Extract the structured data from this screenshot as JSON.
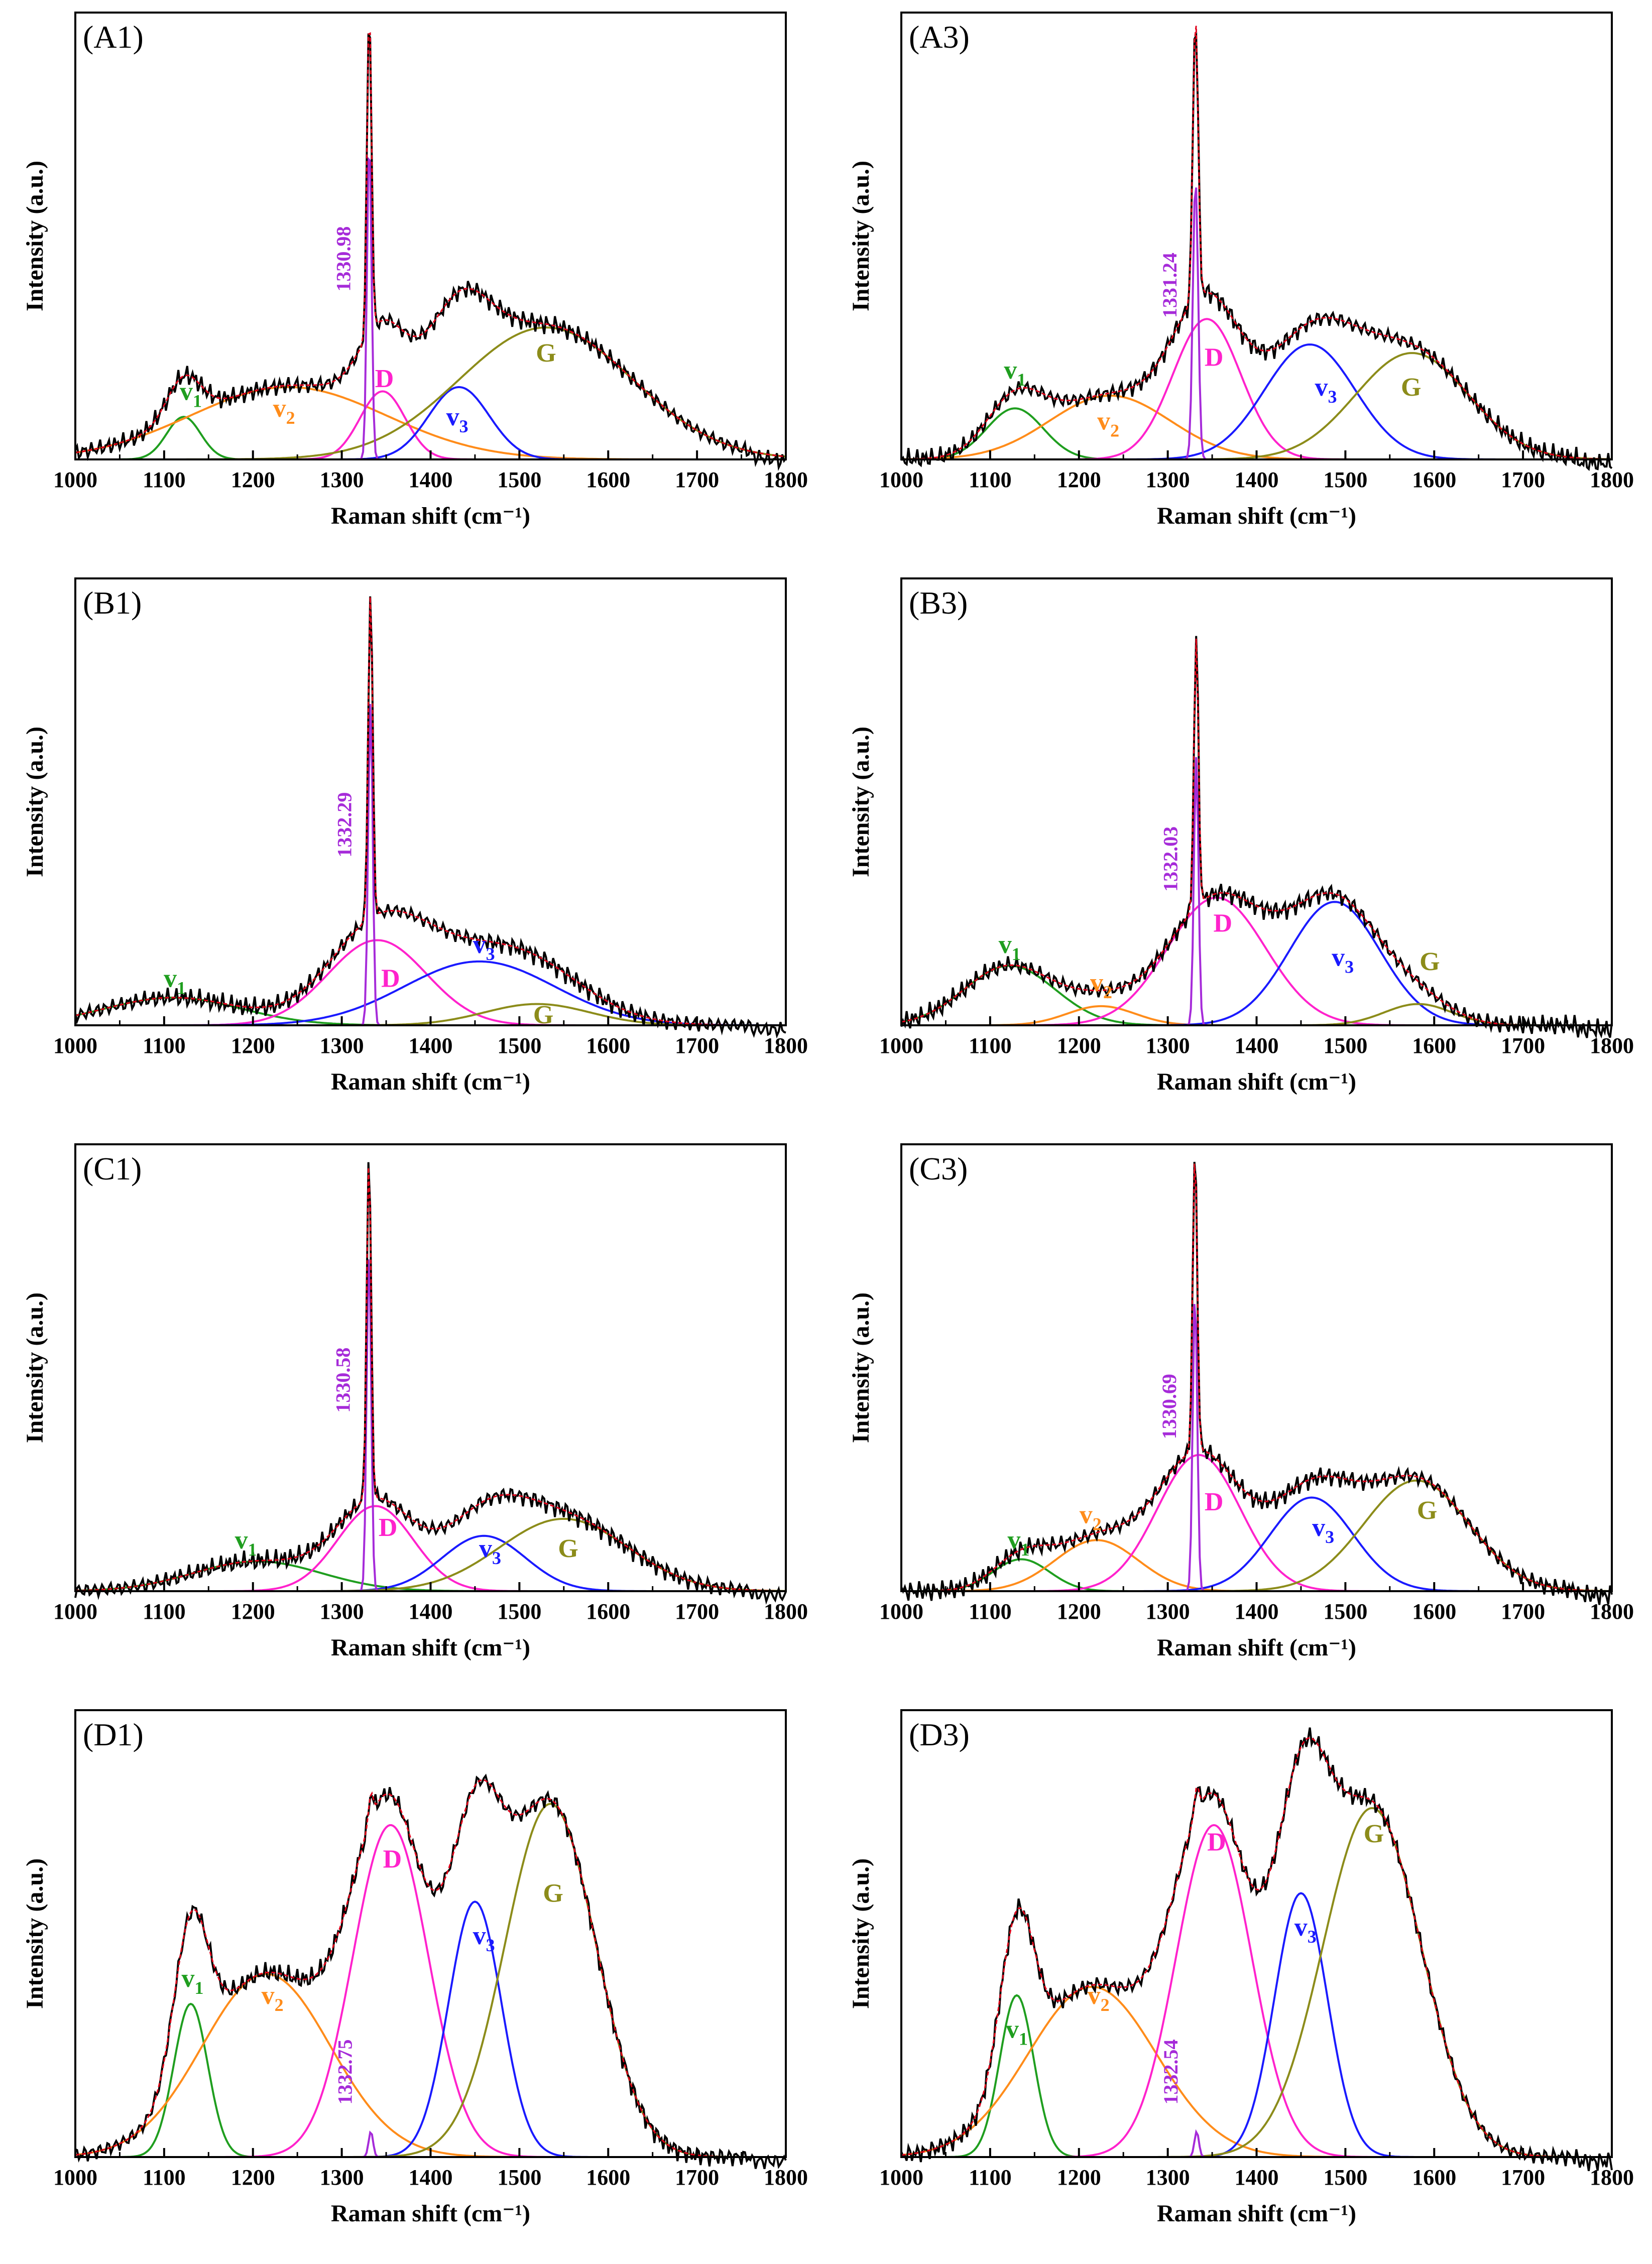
{
  "chart_data": [
    {
      "type": "line",
      "panel": "(A1)",
      "xlabel": "Raman shift (cm⁻¹)",
      "ylabel": "Intensity (a.u.)",
      "xlim": [
        1000,
        1800
      ],
      "ylim": [
        0,
        1.05
      ],
      "xticks": [
        1000,
        1100,
        1200,
        1300,
        1400,
        1500,
        1600,
        1700,
        1800
      ],
      "diamond_label": "1330.98",
      "components": [
        {
          "name": "v1",
          "sub": "1",
          "color": "#1f9e1f",
          "center": 1122,
          "fwhm": 45,
          "height": 0.1
        },
        {
          "name": "v2",
          "sub": "2",
          "color": "#ff8c1a",
          "center": 1240,
          "fwhm": 260,
          "height": 0.17
        },
        {
          "name": "D",
          "sub": "",
          "color": "#ff22cc",
          "center": 1346,
          "fwhm": 60,
          "height": 0.16
        },
        {
          "name": "v3",
          "sub": "3",
          "color": "#1a1aff",
          "center": 1432,
          "fwhm": 80,
          "height": 0.17
        },
        {
          "name": "G",
          "sub": "",
          "color": "#8c8c1a",
          "center": 1530,
          "fwhm": 230,
          "height": 0.31
        },
        {
          "name": "diamond",
          "sub": "",
          "color": "#a62bd9",
          "center": 1330.98,
          "fwhm": 6,
          "height": 0.76
        }
      ],
      "peak_labels": [
        {
          "text": "v",
          "sub": "1",
          "color": "#1f9e1f",
          "x": 1130,
          "y": 0.14
        },
        {
          "text": "v",
          "sub": "2",
          "color": "#ff8c1a",
          "x": 1235,
          "y": 0.1
        },
        {
          "text": "D",
          "sub": "",
          "color": "#ff22cc",
          "x": 1348,
          "y": 0.17
        },
        {
          "text": "v",
          "sub": "3",
          "color": "#1a1aff",
          "x": 1430,
          "y": 0.08
        },
        {
          "text": "G",
          "sub": "",
          "color": "#8c8c1a",
          "x": 1530,
          "y": 0.23
        }
      ]
    },
    {
      "type": "line",
      "panel": "(A3)",
      "xlabel": "Raman shift (cm⁻¹)",
      "ylabel": "Intensity (a.u.)",
      "xlim": [
        1000,
        1800
      ],
      "ylim": [
        0,
        1.05
      ],
      "xticks": [
        1000,
        1100,
        1200,
        1300,
        1400,
        1500,
        1600,
        1700,
        1800
      ],
      "diamond_label": "1331.24",
      "components": [
        {
          "name": "v1",
          "sub": "1",
          "color": "#1f9e1f",
          "center": 1128,
          "fwhm": 75,
          "height": 0.12
        },
        {
          "name": "v2",
          "sub": "2",
          "color": "#ff8c1a",
          "center": 1235,
          "fwhm": 160,
          "height": 0.15
        },
        {
          "name": "D",
          "sub": "",
          "color": "#ff22cc",
          "center": 1344,
          "fwhm": 90,
          "height": 0.33
        },
        {
          "name": "v3",
          "sub": "3",
          "color": "#1a1aff",
          "center": 1460,
          "fwhm": 120,
          "height": 0.27
        },
        {
          "name": "G",
          "sub": "",
          "color": "#8c8c1a",
          "center": 1575,
          "fwhm": 150,
          "height": 0.25
        },
        {
          "name": "diamond",
          "sub": "",
          "color": "#a62bd9",
          "center": 1331.24,
          "fwhm": 7,
          "height": 0.66
        }
      ],
      "peak_labels": [
        {
          "text": "v",
          "sub": "1",
          "color": "#1f9e1f",
          "x": 1128,
          "y": 0.19
        },
        {
          "text": "v",
          "sub": "2",
          "color": "#ff8c1a",
          "x": 1233,
          "y": 0.07
        },
        {
          "text": "D",
          "sub": "",
          "color": "#ff22cc",
          "x": 1352,
          "y": 0.22
        },
        {
          "text": "v",
          "sub": "3",
          "color": "#1a1aff",
          "x": 1478,
          "y": 0.15
        },
        {
          "text": "G",
          "sub": "",
          "color": "#8c8c1a",
          "x": 1574,
          "y": 0.15
        }
      ]
    },
    {
      "type": "line",
      "panel": "(B1)",
      "xlabel": "Raman shift (cm⁻¹)",
      "ylabel": "Intensity (a.u.)",
      "xlim": [
        1000,
        1800
      ],
      "ylim": [
        0,
        1.05
      ],
      "xticks": [
        1000,
        1100,
        1200,
        1300,
        1400,
        1500,
        1600,
        1700,
        1800
      ],
      "diamond_label": "1332.29",
      "components": [
        {
          "name": "v1",
          "sub": "1",
          "color": "#1f9e1f",
          "center": 1110,
          "fwhm": 180,
          "height": 0.065
        },
        {
          "name": "D",
          "sub": "",
          "color": "#ff22cc",
          "center": 1340,
          "fwhm": 130,
          "height": 0.2
        },
        {
          "name": "v3",
          "sub": "3",
          "color": "#1a1aff",
          "center": 1455,
          "fwhm": 200,
          "height": 0.15
        },
        {
          "name": "G",
          "sub": "",
          "color": "#8c8c1a",
          "center": 1520,
          "fwhm": 140,
          "height": 0.05
        },
        {
          "name": "diamond",
          "sub": "",
          "color": "#a62bd9",
          "center": 1332.29,
          "fwhm": 6,
          "height": 0.76
        }
      ],
      "peak_labels": [
        {
          "text": "v",
          "sub": "1",
          "color": "#1f9e1f",
          "x": 1112,
          "y": 0.09
        },
        {
          "text": "D",
          "sub": "",
          "color": "#ff22cc",
          "x": 1355,
          "y": 0.09
        },
        {
          "text": "v",
          "sub": "3",
          "color": "#1a1aff",
          "x": 1460,
          "y": 0.17
        },
        {
          "text": "G",
          "sub": "",
          "color": "#8c8c1a",
          "x": 1527,
          "y": 0.005
        }
      ]
    },
    {
      "type": "line",
      "panel": "(B3)",
      "xlabel": "Raman shift (cm⁻¹)",
      "ylabel": "Intensity (a.u.)",
      "xlim": [
        1000,
        1800
      ],
      "ylim": [
        0,
        1.05
      ],
      "xticks": [
        1000,
        1100,
        1200,
        1300,
        1400,
        1500,
        1600,
        1700,
        1800
      ],
      "diamond_label": "1332.03",
      "components": [
        {
          "name": "v1",
          "sub": "1",
          "color": "#1f9e1f",
          "center": 1122,
          "fwhm": 120,
          "height": 0.14
        },
        {
          "name": "v2",
          "sub": "2",
          "color": "#ff8c1a",
          "center": 1225,
          "fwhm": 90,
          "height": 0.045
        },
        {
          "name": "D",
          "sub": "",
          "color": "#ff22cc",
          "center": 1355,
          "fwhm": 130,
          "height": 0.3
        },
        {
          "name": "v3",
          "sub": "3",
          "color": "#1a1aff",
          "center": 1488,
          "fwhm": 120,
          "height": 0.29
        },
        {
          "name": "G",
          "sub": "",
          "color": "#8c8c1a",
          "center": 1582,
          "fwhm": 90,
          "height": 0.05
        },
        {
          "name": "diamond",
          "sub": "",
          "color": "#a62bd9",
          "center": 1332.03,
          "fwhm": 6,
          "height": 0.63
        }
      ],
      "peak_labels": [
        {
          "text": "v",
          "sub": "1",
          "color": "#1f9e1f",
          "x": 1122,
          "y": 0.17
        },
        {
          "text": "v",
          "sub": "2",
          "color": "#ff8c1a",
          "x": 1225,
          "y": 0.08
        },
        {
          "text": "D",
          "sub": "",
          "color": "#ff22cc",
          "x": 1362,
          "y": 0.22
        },
        {
          "text": "v",
          "sub": "3",
          "color": "#1a1aff",
          "x": 1497,
          "y": 0.14
        },
        {
          "text": "G",
          "sub": "",
          "color": "#8c8c1a",
          "x": 1595,
          "y": 0.13
        }
      ]
    },
    {
      "type": "line",
      "panel": "(C1)",
      "xlabel": "Raman shift (cm⁻¹)",
      "ylabel": "Intensity (a.u.)",
      "xlim": [
        1000,
        1800
      ],
      "ylim": [
        0,
        1.05
      ],
      "xticks": [
        1000,
        1100,
        1200,
        1300,
        1400,
        1500,
        1600,
        1700,
        1800
      ],
      "diamond_label": "1330.58",
      "components": [
        {
          "name": "v1",
          "sub": "1",
          "color": "#1f9e1f",
          "center": 1205,
          "fwhm": 170,
          "height": 0.07
        },
        {
          "name": "D",
          "sub": "",
          "color": "#ff22cc",
          "center": 1338,
          "fwhm": 100,
          "height": 0.2
        },
        {
          "name": "v3",
          "sub": "3",
          "color": "#1a1aff",
          "center": 1460,
          "fwhm": 110,
          "height": 0.13
        },
        {
          "name": "G",
          "sub": "",
          "color": "#8c8c1a",
          "center": 1550,
          "fwhm": 170,
          "height": 0.17
        },
        {
          "name": "diamond",
          "sub": "",
          "color": "#a62bd9",
          "center": 1330.58,
          "fwhm": 6,
          "height": 0.8
        }
      ],
      "peak_labels": [
        {
          "text": "v",
          "sub": "1",
          "color": "#1f9e1f",
          "x": 1192,
          "y": 0.1
        },
        {
          "text": "D",
          "sub": "",
          "color": "#ff22cc",
          "x": 1352,
          "y": 0.13
        },
        {
          "text": "v",
          "sub": "3",
          "color": "#1a1aff",
          "x": 1467,
          "y": 0.08
        },
        {
          "text": "G",
          "sub": "",
          "color": "#8c8c1a",
          "x": 1555,
          "y": 0.08
        }
      ]
    },
    {
      "type": "line",
      "panel": "(C3)",
      "xlabel": "Raman shift (cm⁻¹)",
      "ylabel": "Intensity (a.u.)",
      "xlim": [
        1000,
        1800
      ],
      "ylim": [
        0,
        1.05
      ],
      "xticks": [
        1000,
        1100,
        1200,
        1300,
        1400,
        1500,
        1600,
        1700,
        1800
      ],
      "diamond_label": "1330.69",
      "components": [
        {
          "name": "v1",
          "sub": "1",
          "color": "#1f9e1f",
          "center": 1135,
          "fwhm": 75,
          "height": 0.075
        },
        {
          "name": "v2",
          "sub": "2",
          "color": "#ff8c1a",
          "center": 1220,
          "fwhm": 110,
          "height": 0.12
        },
        {
          "name": "D",
          "sub": "",
          "color": "#ff22cc",
          "center": 1335,
          "fwhm": 110,
          "height": 0.32
        },
        {
          "name": "v3",
          "sub": "3",
          "color": "#1a1aff",
          "center": 1462,
          "fwhm": 110,
          "height": 0.22
        },
        {
          "name": "G",
          "sub": "",
          "color": "#8c8c1a",
          "center": 1580,
          "fwhm": 140,
          "height": 0.26
        },
        {
          "name": "diamond",
          "sub": "",
          "color": "#a62bd9",
          "center": 1330.69,
          "fwhm": 6,
          "height": 0.7
        }
      ],
      "peak_labels": [
        {
          "text": "v",
          "sub": "1",
          "color": "#1f9e1f",
          "x": 1132,
          "y": 0.1
        },
        {
          "text": "v",
          "sub": "2",
          "color": "#ff8c1a",
          "x": 1213,
          "y": 0.16
        },
        {
          "text": "D",
          "sub": "",
          "color": "#ff22cc",
          "x": 1352,
          "y": 0.19
        },
        {
          "text": "v",
          "sub": "3",
          "color": "#1a1aff",
          "x": 1475,
          "y": 0.13
        },
        {
          "text": "G",
          "sub": "",
          "color": "#8c8c1a",
          "x": 1592,
          "y": 0.17
        }
      ]
    },
    {
      "type": "line",
      "panel": "(D1)",
      "xlabel": "Raman shift (cm⁻¹)",
      "ylabel": "Intensity (a.u.)",
      "xlim": [
        1000,
        1800
      ],
      "ylim": [
        0,
        1.05
      ],
      "xticks": [
        1000,
        1100,
        1200,
        1300,
        1400,
        1500,
        1600,
        1700,
        1800
      ],
      "diamond_label": "1332.75",
      "components": [
        {
          "name": "v1",
          "sub": "1",
          "color": "#1f9e1f",
          "center": 1130,
          "fwhm": 45,
          "height": 0.36
        },
        {
          "name": "v2",
          "sub": "2",
          "color": "#ff8c1a",
          "center": 1215,
          "fwhm": 170,
          "height": 0.43
        },
        {
          "name": "D",
          "sub": "",
          "color": "#ff22cc",
          "center": 1355,
          "fwhm": 100,
          "height": 0.78
        },
        {
          "name": "v3",
          "sub": "3",
          "color": "#1a1aff",
          "center": 1450,
          "fwhm": 70,
          "height": 0.6
        },
        {
          "name": "G",
          "sub": "",
          "color": "#8c8c1a",
          "center": 1535,
          "fwhm": 120,
          "height": 0.83
        },
        {
          "name": "diamond",
          "sub": "",
          "color": "#a62bd9",
          "center": 1332.75,
          "fwhm": 6,
          "height": 0.06
        }
      ],
      "peak_labels": [
        {
          "text": "v",
          "sub": "1",
          "color": "#1f9e1f",
          "x": 1132,
          "y": 0.4
        },
        {
          "text": "v",
          "sub": "2",
          "color": "#ff8c1a",
          "x": 1222,
          "y": 0.36
        },
        {
          "text": "D",
          "sub": "",
          "color": "#ff22cc",
          "x": 1357,
          "y": 0.68
        },
        {
          "text": "v",
          "sub": "3",
          "color": "#1a1aff",
          "x": 1460,
          "y": 0.5
        },
        {
          "text": "G",
          "sub": "",
          "color": "#8c8c1a",
          "x": 1538,
          "y": 0.6
        }
      ]
    },
    {
      "type": "line",
      "panel": "(D3)",
      "xlabel": "Raman shift (cm⁻¹)",
      "ylabel": "Intensity (a.u.)",
      "xlim": [
        1000,
        1800
      ],
      "ylim": [
        0,
        1.05
      ],
      "xticks": [
        1000,
        1100,
        1200,
        1300,
        1400,
        1500,
        1600,
        1700,
        1800
      ],
      "diamond_label": "1332.54",
      "components": [
        {
          "name": "v1",
          "sub": "1",
          "color": "#1f9e1f",
          "center": 1130,
          "fwhm": 45,
          "height": 0.38
        },
        {
          "name": "v2",
          "sub": "2",
          "color": "#ff8c1a",
          "center": 1215,
          "fwhm": 170,
          "height": 0.4
        },
        {
          "name": "D",
          "sub": "",
          "color": "#ff22cc",
          "center": 1352,
          "fwhm": 100,
          "height": 0.78
        },
        {
          "name": "v3",
          "sub": "3",
          "color": "#1a1aff",
          "center": 1450,
          "fwhm": 70,
          "height": 0.62
        },
        {
          "name": "G",
          "sub": "",
          "color": "#8c8c1a",
          "center": 1530,
          "fwhm": 130,
          "height": 0.82
        },
        {
          "name": "diamond",
          "sub": "",
          "color": "#a62bd9",
          "center": 1332.54,
          "fwhm": 6,
          "height": 0.06
        }
      ],
      "peak_labels": [
        {
          "text": "v",
          "sub": "1",
          "color": "#1f9e1f",
          "x": 1130,
          "y": 0.28
        },
        {
          "text": "v",
          "sub": "2",
          "color": "#ff8c1a",
          "x": 1222,
          "y": 0.36
        },
        {
          "text": "D",
          "sub": "",
          "color": "#ff22cc",
          "x": 1355,
          "y": 0.72
        },
        {
          "text": "v",
          "sub": "3",
          "color": "#1a1aff",
          "x": 1455,
          "y": 0.52
        },
        {
          "text": "G",
          "sub": "",
          "color": "#8c8c1a",
          "x": 1532,
          "y": 0.74
        }
      ]
    }
  ],
  "colors": {
    "measured": "#000000",
    "fit": "#e0001a"
  }
}
